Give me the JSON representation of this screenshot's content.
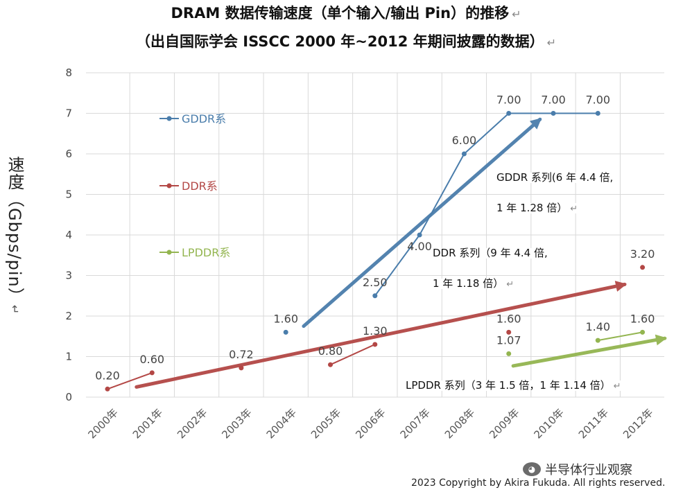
{
  "title_line1": "DRAM 数据传输速度（单个输入/输出 Pin）的推移",
  "title_line2": "（出自国际学会 ISSCC 2000 年~2012 年期间披露的数据）",
  "return_mark": "↵",
  "y_axis_label": "速度（Gbps/pin）",
  "y_axis_mark": "↵",
  "notes": {
    "gddr_line1": "GDDR 系列(6 年 4.4 倍,",
    "gddr_line2": "1 年 1.28 倍）",
    "ddr_line1": "DDR 系列（9 年 4.4 倍,",
    "ddr_line2": "1 年 1.18 倍）",
    "lpddr": "LPDDR 系列（3 年 1.5 倍，1 年 1.14 倍）"
  },
  "watermark": "半导体行业观察",
  "copyright": "2023 Copyright by Akira Fukuda. All rights reserved.",
  "colors": {
    "gddr": "#4a7dab",
    "ddr": "#b34745",
    "lpddr": "#93b550",
    "grid": "#d9d9d9"
  },
  "chart_data": {
    "type": "line",
    "categories": [
      "2000年",
      "2001年",
      "2002年",
      "2003年",
      "2004年",
      "2005年",
      "2006年",
      "2007年",
      "2008年",
      "2009年",
      "2010年",
      "2011年",
      "2012年"
    ],
    "ylim": [
      0,
      8
    ],
    "yticks": [
      0,
      1,
      2,
      3,
      4,
      5,
      6,
      7,
      8
    ],
    "ylabel": "速度（Gbps/pin）",
    "grid": true,
    "legend_position": "left",
    "series": [
      {
        "name": "GDDR系",
        "color_key": "gddr",
        "segments": [
          {
            "points": [
              {
                "x": "2004年",
                "y": 1.6
              }
            ]
          },
          {
            "points": [
              {
                "x": "2006年",
                "y": 2.5
              },
              {
                "x": "2007年",
                "y": 4.0
              },
              {
                "x": "2008年",
                "y": 6.0
              },
              {
                "x": "2009年",
                "y": 7.0
              },
              {
                "x": "2010年",
                "y": 7.0
              },
              {
                "x": "2011年",
                "y": 7.0
              }
            ]
          }
        ],
        "labels": [
          {
            "x": "2004年",
            "y": 1.6,
            "text": "1.60"
          },
          {
            "x": "2006年",
            "y": 2.5,
            "text": "2.50"
          },
          {
            "x": "2007年",
            "y": 4.0,
            "text": "4.00"
          },
          {
            "x": "2008年",
            "y": 6.0,
            "text": "6.00"
          },
          {
            "x": "2009年",
            "y": 7.0,
            "text": "7.00"
          },
          {
            "x": "2010年",
            "y": 7.0,
            "text": "7.00"
          },
          {
            "x": "2011年",
            "y": 7.0,
            "text": "7.00"
          }
        ]
      },
      {
        "name": "DDR系",
        "color_key": "ddr",
        "segments": [
          {
            "points": [
              {
                "x": "2000年",
                "y": 0.2
              },
              {
                "x": "2001年",
                "y": 0.6
              }
            ]
          },
          {
            "points": [
              {
                "x": "2003年",
                "y": 0.72
              }
            ]
          },
          {
            "points": [
              {
                "x": "2005年",
                "y": 0.8
              },
              {
                "x": "2006年",
                "y": 1.3
              }
            ]
          },
          {
            "points": [
              {
                "x": "2009年",
                "y": 1.6
              }
            ]
          },
          {
            "points": [
              {
                "x": "2012年",
                "y": 3.2
              }
            ]
          }
        ],
        "labels": [
          {
            "x": "2000年",
            "y": 0.2,
            "text": "0.20"
          },
          {
            "x": "2001年",
            "y": 0.6,
            "text": "0.60"
          },
          {
            "x": "2003年",
            "y": 0.72,
            "text": "0.72"
          },
          {
            "x": "2005年",
            "y": 0.8,
            "text": "0.80"
          },
          {
            "x": "2006年",
            "y": 1.3,
            "text": "1.30"
          },
          {
            "x": "2009年",
            "y": 1.6,
            "text": "1.60"
          },
          {
            "x": "2012年",
            "y": 3.2,
            "text": "3.20"
          }
        ]
      },
      {
        "name": "LPDDR系",
        "color_key": "lpddr",
        "segments": [
          {
            "points": [
              {
                "x": "2009年",
                "y": 1.07
              }
            ]
          },
          {
            "points": [
              {
                "x": "2011年",
                "y": 1.4
              },
              {
                "x": "2012年",
                "y": 1.6
              }
            ]
          }
        ],
        "labels": [
          {
            "x": "2009年",
            "y": 1.07,
            "text": "1.07"
          },
          {
            "x": "2011年",
            "y": 1.4,
            "text": "1.40"
          },
          {
            "x": "2012年",
            "y": 1.6,
            "text": "1.60"
          }
        ]
      }
    ],
    "trend_arrows": [
      {
        "series": "GDDR系",
        "from": {
          "x": 4.4,
          "y": 1.75
        },
        "to": {
          "x": 9.7,
          "y": 6.85
        }
      },
      {
        "series": "DDR系",
        "from": {
          "x": 0.65,
          "y": 0.25
        },
        "to": {
          "x": 11.6,
          "y": 2.78
        }
      },
      {
        "series": "LPDDR系",
        "from": {
          "x": 9.1,
          "y": 0.77
        },
        "to": {
          "x": 12.5,
          "y": 1.45
        }
      }
    ]
  }
}
